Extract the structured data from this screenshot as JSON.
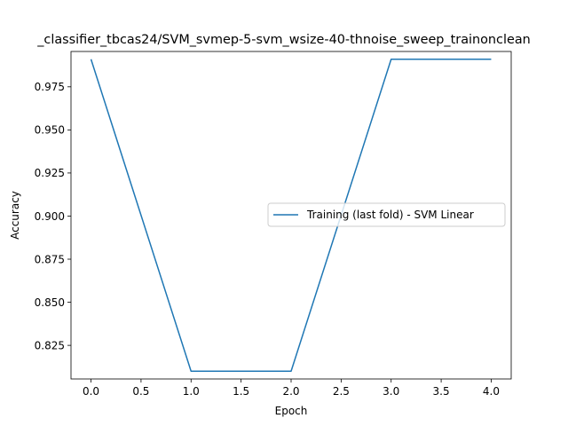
{
  "chart_data": {
    "type": "line",
    "title": "_classifier_tbcas24/SVM_svmep-5-svm_wsize-40-thnoise_sweep_trainonclean",
    "xlabel": "Epoch",
    "ylabel": "Accuracy",
    "xlim": [
      -0.2,
      4.2
    ],
    "ylim": [
      0.8055,
      0.9955
    ],
    "xticks": [
      0.0,
      0.5,
      1.0,
      1.5,
      2.0,
      2.5,
      3.0,
      3.5,
      4.0
    ],
    "xtick_labels": [
      "0.0",
      "0.5",
      "1.0",
      "1.5",
      "2.0",
      "2.5",
      "3.0",
      "3.5",
      "4.0"
    ],
    "yticks": [
      0.825,
      0.85,
      0.875,
      0.9,
      0.925,
      0.95,
      0.975
    ],
    "ytick_labels": [
      "0.825",
      "0.850",
      "0.875",
      "0.900",
      "0.925",
      "0.950",
      "0.975"
    ],
    "grid": false,
    "legend_position": "center-right",
    "x": [
      0,
      1,
      2,
      3,
      4
    ],
    "series": [
      {
        "name": "Training (last fold) - SVM Linear",
        "values": [
          0.991,
          0.81,
          0.81,
          0.991,
          0.991
        ],
        "color": "#1f77b4"
      }
    ]
  }
}
